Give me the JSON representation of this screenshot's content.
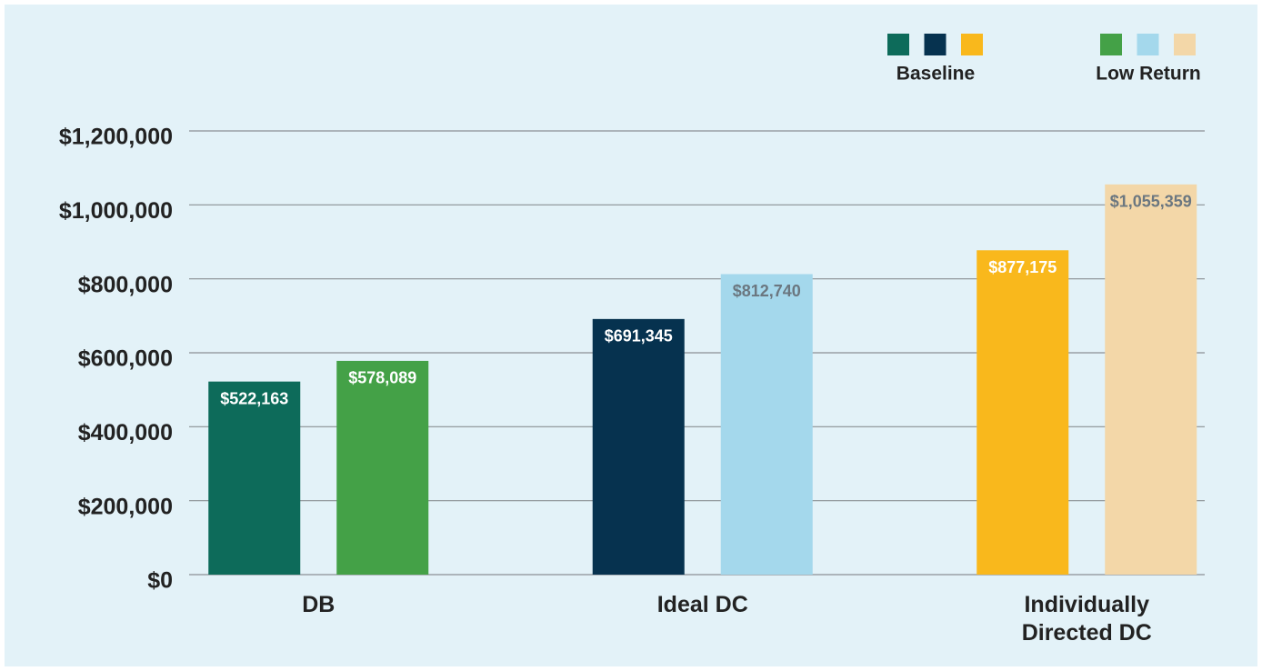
{
  "chart_data": {
    "type": "bar",
    "categories": [
      "DB",
      "Ideal DC",
      "Individually Directed DC"
    ],
    "series": [
      {
        "name": "Baseline",
        "colors": [
          "#0d6b5a",
          "#06324f",
          "#f9b81c"
        ],
        "label_colors": [
          "#ffffff",
          "#ffffff",
          "#ffffff"
        ],
        "values": [
          522163,
          691345,
          877175
        ],
        "value_labels": [
          "$522,163",
          "$691,345",
          "$877,175"
        ]
      },
      {
        "name": "Low Return",
        "colors": [
          "#44a147",
          "#a4d8ec",
          "#f3d7a8"
        ],
        "label_colors": [
          "#ffffff",
          "#6b7780",
          "#6b7780"
        ],
        "values": [
          578089,
          812740,
          1055359
        ],
        "value_labels": [
          "$578,089",
          "$812,740",
          "$1,055,359"
        ]
      }
    ],
    "ylim": [
      0,
      1200000
    ],
    "yticks": [
      {
        "value": 0,
        "label": "$0"
      },
      {
        "value": 200000,
        "label": "$200,000"
      },
      {
        "value": 400000,
        "label": "$400,000"
      },
      {
        "value": 600000,
        "label": "$600,000"
      },
      {
        "value": 800000,
        "label": "$800,000"
      },
      {
        "value": 1000000,
        "label": "$1,000,000"
      },
      {
        "value": 1200000,
        "label": "$1,200,000"
      }
    ],
    "grid": true,
    "legend": "top-right"
  }
}
